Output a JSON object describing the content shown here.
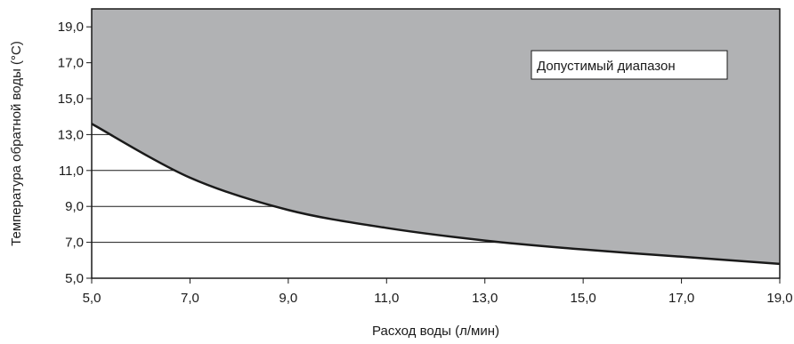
{
  "chart_data": {
    "type": "area",
    "xlabel": "Расход воды (л/мин)",
    "ylabel": "Температура обратной воды (°C)",
    "xlim": [
      5,
      19
    ],
    "ylim": [
      5,
      20
    ],
    "x_ticks": [
      "5,0",
      "7,0",
      "9,0",
      "11,0",
      "13,0",
      "15,0",
      "17,0",
      "19,0"
    ],
    "y_ticks": [
      "5,0",
      "7,0",
      "9,0",
      "11,0",
      "13,0",
      "15,0",
      "17,0",
      "19,0"
    ],
    "x_tick_values": [
      5,
      7,
      9,
      11,
      13,
      15,
      17,
      19
    ],
    "y_tick_values": [
      5,
      7,
      9,
      11,
      13,
      15,
      17,
      19
    ],
    "horizontal_grid": [
      7,
      9,
      11,
      13
    ],
    "series": [
      {
        "name": "Допустимый диапазон",
        "x": [
          5,
          7,
          9,
          11,
          13,
          15,
          17,
          19
        ],
        "y": [
          13.6,
          10.6,
          8.8,
          7.8,
          7.1,
          6.6,
          6.2,
          5.8
        ]
      }
    ],
    "fill_above_curve": true,
    "fill_color": "#b1b2b4",
    "line_color": "#1a1a1a",
    "legend": {
      "label": "Допустимый диапазон",
      "placement": "top-right"
    }
  }
}
